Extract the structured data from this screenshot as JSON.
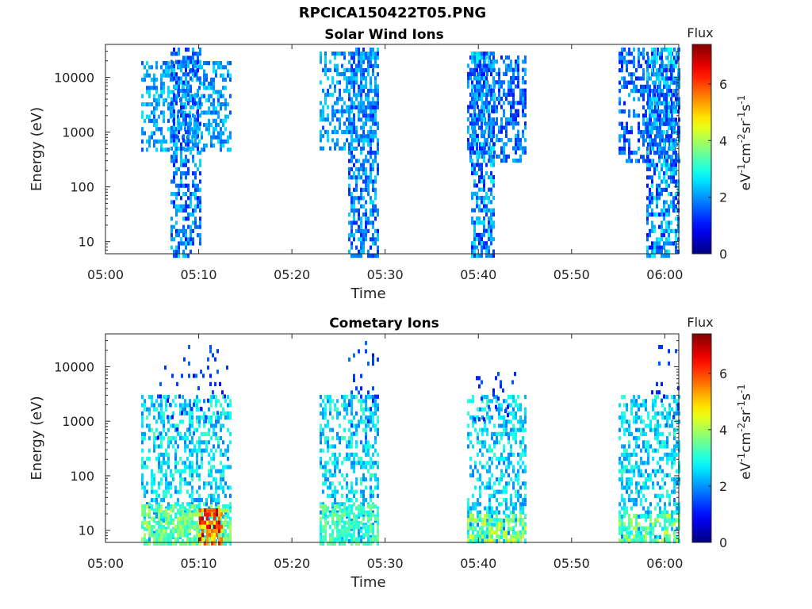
{
  "figure_title": "RPCICA150422T05.PNG",
  "chart_data": [
    {
      "type": "heatmap",
      "title": "Solar Wind Ions",
      "xlabel": "Time",
      "ylabel": "Energy (eV)",
      "x_ticks": [
        "05:00",
        "05:10",
        "05:20",
        "05:30",
        "05:40",
        "05:50",
        "06:00"
      ],
      "xlim_minutes": [
        0,
        61.5
      ],
      "y_scale": "log",
      "y_ticks": [
        "10",
        "100",
        "1000",
        "10000"
      ],
      "ylim": [
        6,
        40000
      ],
      "colorbar": {
        "label_top": "Flux",
        "units": "eV⁻¹cm⁻²sr⁻¹s⁻¹",
        "range": [
          0,
          7.4
        ],
        "ticks": [
          "0",
          "2",
          "4",
          "6"
        ],
        "colormap": "jet"
      },
      "blocks": [
        {
          "t_start_min": 3.8,
          "t_end_min": 13.4,
          "e_min": 500,
          "e_max": 20000,
          "flux_range": [
            1.5,
            2.7
          ],
          "density": 0.45
        },
        {
          "t_start_min": 7.0,
          "t_end_min": 10.2,
          "e_min": 6,
          "e_max": 35000,
          "flux_range": [
            1.0,
            2.6
          ],
          "density": 0.55
        },
        {
          "t_start_min": 23.0,
          "t_end_min": 29.2,
          "e_min": 500,
          "e_max": 30000,
          "flux_range": [
            1.5,
            2.6
          ],
          "density": 0.4
        },
        {
          "t_start_min": 26.0,
          "t_end_min": 29.2,
          "e_min": 6,
          "e_max": 35000,
          "flux_range": [
            1.1,
            2.6
          ],
          "density": 0.55
        },
        {
          "t_start_min": 38.8,
          "t_end_min": 45.2,
          "e_min": 300,
          "e_max": 25000,
          "flux_range": [
            1.0,
            2.4
          ],
          "density": 0.5
        },
        {
          "t_start_min": 39.2,
          "t_end_min": 41.6,
          "e_min": 6,
          "e_max": 30000,
          "flux_range": [
            1.0,
            2.8
          ],
          "density": 0.65
        },
        {
          "t_start_min": 55.0,
          "t_end_min": 61.5,
          "e_min": 300,
          "e_max": 35000,
          "flux_range": [
            1.0,
            2.4
          ],
          "density": 0.45
        },
        {
          "t_start_min": 58.0,
          "t_end_min": 61.5,
          "e_min": 6,
          "e_max": 35000,
          "flux_range": [
            1.0,
            2.9
          ],
          "density": 0.6
        }
      ]
    },
    {
      "type": "heatmap",
      "title": "Cometary Ions",
      "xlabel": "Time",
      "ylabel": "Energy (eV)",
      "x_ticks": [
        "05:00",
        "05:10",
        "05:20",
        "05:30",
        "05:40",
        "05:50",
        "06:00"
      ],
      "xlim_minutes": [
        0,
        61.5
      ],
      "y_scale": "log",
      "y_ticks": [
        "10",
        "100",
        "1000",
        "10000"
      ],
      "ylim": [
        6,
        40000
      ],
      "colorbar": {
        "label_top": "Flux",
        "units": "eV⁻¹cm⁻²sr⁻¹s⁻¹",
        "range": [
          0,
          7.4
        ],
        "ticks": [
          "0",
          "2",
          "4",
          "6"
        ],
        "colormap": "jet"
      },
      "blocks": [
        {
          "t_start_min": 3.8,
          "t_end_min": 13.4,
          "e_min": 6,
          "e_max": 3000,
          "flux_range": [
            1.8,
            3.3
          ],
          "density": 0.45
        },
        {
          "t_start_min": 3.8,
          "t_end_min": 13.4,
          "e_min": 6,
          "e_max": 30,
          "flux_range": [
            2.8,
            4.2
          ],
          "density": 0.7
        },
        {
          "t_start_min": 10.0,
          "t_end_min": 12.5,
          "e_min": 6,
          "e_max": 25,
          "flux_range": [
            4.5,
            7.2
          ],
          "density": 0.8
        },
        {
          "t_start_min": 5.5,
          "t_end_min": 13.0,
          "e_min": 500,
          "e_max": 25000,
          "flux_range": [
            1.0,
            1.8
          ],
          "density": 0.08
        },
        {
          "t_start_min": 23.0,
          "t_end_min": 29.2,
          "e_min": 6,
          "e_max": 3000,
          "flux_range": [
            1.8,
            3.3
          ],
          "density": 0.45
        },
        {
          "t_start_min": 23.0,
          "t_end_min": 29.2,
          "e_min": 6,
          "e_max": 30,
          "flux_range": [
            2.8,
            3.8
          ],
          "density": 0.6
        },
        {
          "t_start_min": 26.0,
          "t_end_min": 29.2,
          "e_min": 500,
          "e_max": 30000,
          "flux_range": [
            1.0,
            1.8
          ],
          "density": 0.1
        },
        {
          "t_start_min": 38.8,
          "t_end_min": 45.2,
          "e_min": 6,
          "e_max": 3000,
          "flux_range": [
            1.8,
            3.2
          ],
          "density": 0.45
        },
        {
          "t_start_min": 38.8,
          "t_end_min": 45.2,
          "e_min": 6,
          "e_max": 20,
          "flux_range": [
            2.8,
            4.6
          ],
          "density": 0.55
        },
        {
          "t_start_min": 39.5,
          "t_end_min": 44.0,
          "e_min": 1000,
          "e_max": 8000,
          "flux_range": [
            1.0,
            1.6
          ],
          "density": 0.1
        },
        {
          "t_start_min": 55.0,
          "t_end_min": 61.5,
          "e_min": 6,
          "e_max": 3000,
          "flux_range": [
            1.8,
            3.3
          ],
          "density": 0.45
        },
        {
          "t_start_min": 55.0,
          "t_end_min": 61.5,
          "e_min": 6,
          "e_max": 20,
          "flux_range": [
            2.8,
            4.4
          ],
          "density": 0.55
        },
        {
          "t_start_min": 58.5,
          "t_end_min": 61.5,
          "e_min": 800,
          "e_max": 25000,
          "flux_range": [
            1.0,
            1.6
          ],
          "density": 0.1
        }
      ]
    }
  ]
}
